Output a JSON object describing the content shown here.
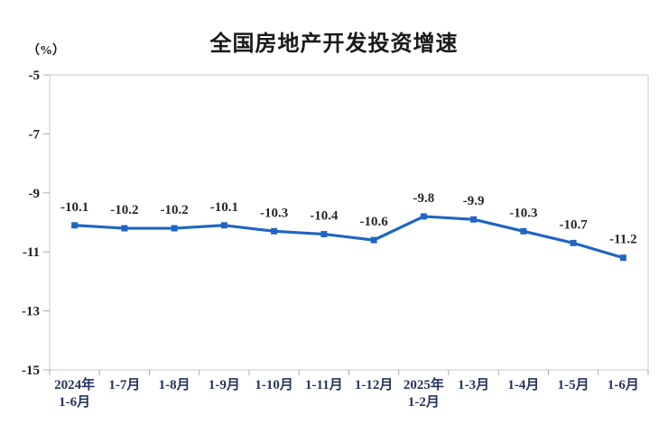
{
  "chart_data": {
    "type": "line",
    "title": "全国房地产开发投资增速",
    "unit_label": "（%）",
    "series_name": "全国房地产开发投资增速",
    "categories": [
      "2024年\n1-6月",
      "1-7月",
      "1-8月",
      "1-9月",
      "1-10月",
      "1-11月",
      "1-12月",
      "2025年\n1-2月",
      "1-3月",
      "1-4月",
      "1-5月",
      "1-6月"
    ],
    "values": [
      -10.1,
      -10.2,
      -10.2,
      -10.1,
      -10.3,
      -10.4,
      -10.6,
      -9.8,
      -9.9,
      -10.3,
      -10.7,
      -11.2
    ],
    "data_labels": [
      "-10.1",
      "-10.2",
      "-10.2",
      "-10.1",
      "-10.3",
      "-10.4",
      "-10.6",
      "-9.8",
      "-9.9",
      "-10.3",
      "-10.7",
      "-11.2"
    ],
    "ylim": [
      -15,
      -5
    ],
    "ytick_interval": 2,
    "ytick_labels": [
      "-5",
      "-7",
      "-9",
      "-11",
      "-13",
      "-15"
    ],
    "grid": false,
    "legend_position": "none",
    "colors": {
      "line": "#2066c2",
      "marker": "#2066c2",
      "axis_box": "#c9c9c9",
      "tick": "#a8a8a8",
      "ytick_label": "#1f1f1f",
      "xtick_label": "#26355c",
      "data_label": "#262626"
    }
  }
}
